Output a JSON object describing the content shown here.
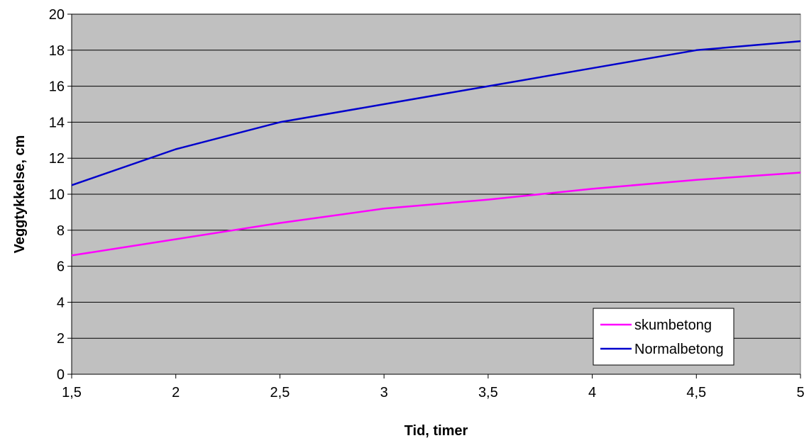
{
  "chart_data": {
    "type": "line",
    "x": [
      1.5,
      2,
      2.5,
      3,
      3.5,
      4,
      4.5,
      5
    ],
    "x_tick_labels": [
      "1,5",
      "2",
      "2,5",
      "3",
      "3,5",
      "4",
      "4,5",
      "5"
    ],
    "xlim": [
      1.5,
      5
    ],
    "ylim": [
      0,
      20
    ],
    "y_ticks": [
      0,
      2,
      4,
      6,
      8,
      10,
      12,
      14,
      16,
      18,
      20
    ],
    "y_tick_labels": [
      "0",
      "2",
      "4",
      "6",
      "8",
      "10",
      "12",
      "14",
      "16",
      "18",
      "20"
    ],
    "xlabel": "Tid, timer",
    "ylabel": "Veggtykkelse, cm",
    "grid": "horizontal",
    "plot_background": "#c0c0c0",
    "legend_position": "bottom-right",
    "series": [
      {
        "name": "skumbetong",
        "color": "#ff00ff",
        "values": [
          6.6,
          7.5,
          8.4,
          9.2,
          9.7,
          10.3,
          10.8,
          11.2
        ]
      },
      {
        "name": "Normalbetong",
        "color": "#0000cc",
        "values": [
          10.5,
          12.5,
          14.0,
          15.0,
          16.0,
          17.0,
          18.0,
          18.5
        ]
      }
    ]
  }
}
